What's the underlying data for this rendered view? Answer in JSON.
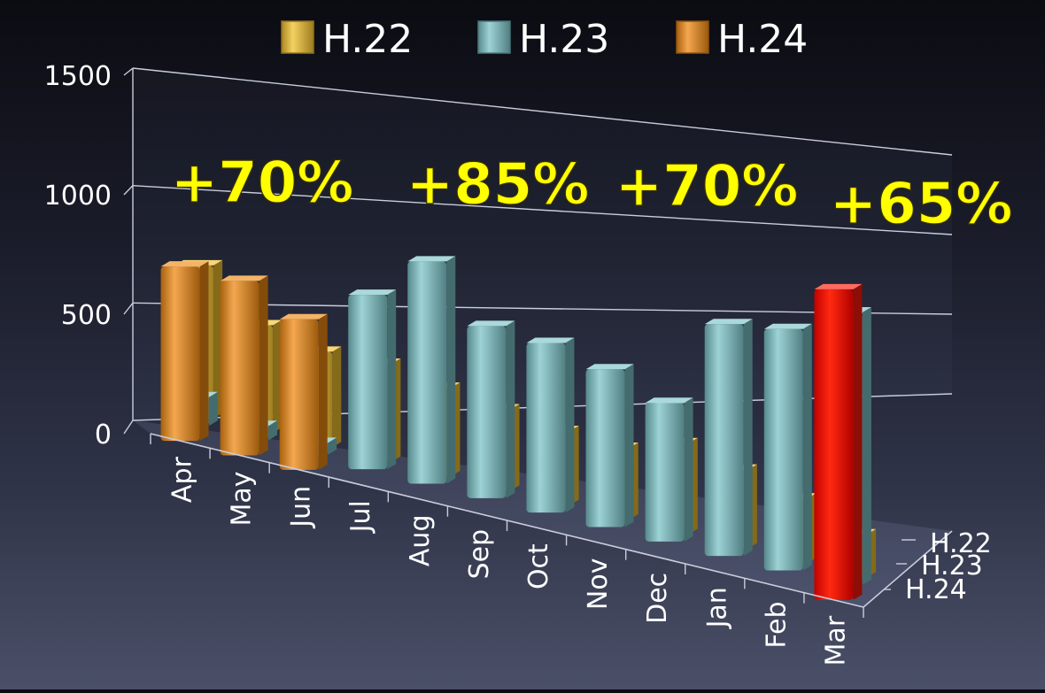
{
  "chart_data": {
    "type": "bar",
    "categories": [
      "Apr",
      "May",
      "Jun",
      "Jul",
      "Aug",
      "Sep",
      "Oct",
      "Nov",
      "Dec",
      "Jan",
      "Feb",
      "Mar"
    ],
    "series": [
      {
        "name": "H.22",
        "values": [
          640,
          450,
          400,
          410,
          370,
          340,
          310,
          300,
          380,
          330,
          270,
          180
        ]
      },
      {
        "name": "H.23",
        "values": [
          120,
          60,
          50,
          730,
          930,
          720,
          710,
          660,
          580,
          970,
          1010,
          1140
        ]
      },
      {
        "name": "H.24",
        "values": [
          730,
          730,
          630,
          null,
          null,
          null,
          null,
          null,
          null,
          null,
          null,
          1300
        ]
      }
    ],
    "colors": {
      "H.22": "#f2c12e",
      "H.23": "#7cc4c8",
      "H.24": "#f08a14",
      "highlight": "#ff1a0a"
    },
    "y_ticks": [
      "0",
      "500",
      "1000",
      "1500"
    ],
    "ylim": [
      0,
      1500
    ],
    "depth_labels": [
      "H.22",
      "H.23",
      "H.24"
    ],
    "legend_position": "top",
    "grid": true,
    "annotations": [
      "+70%",
      "+85%",
      "+70%",
      "+65%"
    ],
    "annotation_color": "#ffff00"
  }
}
